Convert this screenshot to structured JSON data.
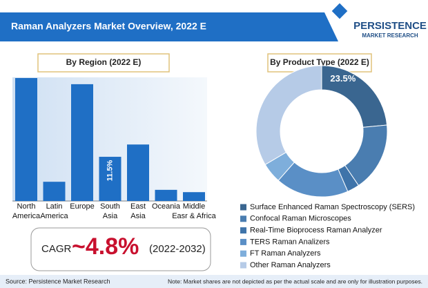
{
  "header": {
    "title": "Raman Analyzers Market Overview, 2022 E"
  },
  "logo": {
    "name": "PERSISTENCE",
    "subtitle": "MARKET RESEARCH"
  },
  "chart_data": [
    {
      "type": "bar",
      "title": "By Region (2022 E)",
      "categories": [
        "North America",
        "Latin America",
        "Europe",
        "South Asia",
        "East Asia",
        "Oceania",
        "Middle Easr & Africa"
      ],
      "values": [
        32.0,
        5.0,
        30.4,
        11.5,
        14.7,
        2.9,
        2.3
      ],
      "value_labels": [
        null,
        null,
        null,
        "11.5%",
        null,
        null,
        null
      ],
      "color": "#1f6fc5"
    },
    {
      "type": "donut",
      "title": "By Product Type (2022 E)",
      "categories": [
        "Surface Enhanced Raman Spectroscopy (SERS)",
        "Confocal Raman Microscopes",
        "Real-Time Bioprocess Raman Analyzer",
        "TERS Raman Analizers",
        "FT Raman Analyzers",
        "Other Raman Analyzers"
      ],
      "values": [
        23.5,
        17,
        3,
        18,
        5,
        33.5
      ],
      "value_labels": [
        "23.5%",
        null,
        null,
        null,
        null,
        null
      ],
      "colors": [
        "#3a6690",
        "#4a7db0",
        "#3f74aa",
        "#5a8fc6",
        "#7eaedb",
        "#b6cbe7"
      ]
    }
  ],
  "cagr": {
    "label": "CAGR",
    "value": "~4.8%",
    "period": "(2022-2032)"
  },
  "footer": {
    "source": "Source: Persistence Market Research",
    "note": "Note: Market shares are not depicted as per the actual scale and are only for illustration purposes."
  }
}
